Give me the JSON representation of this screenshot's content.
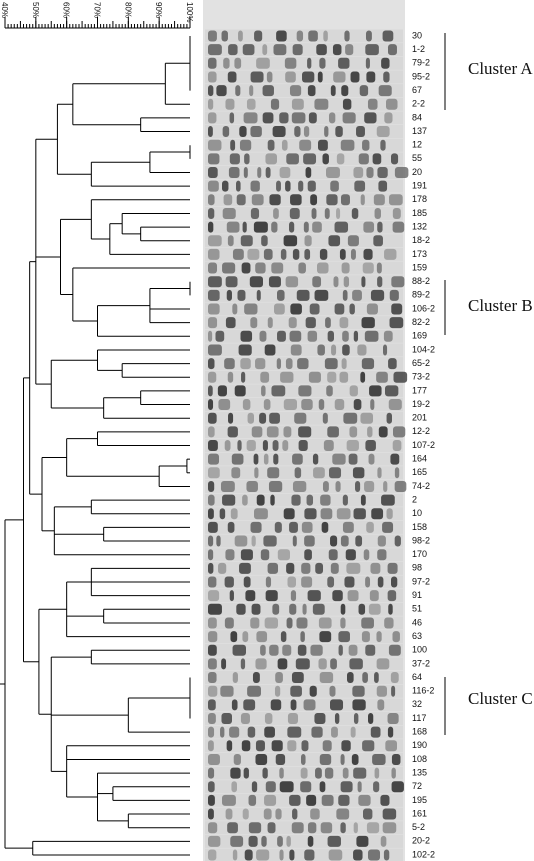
{
  "scale": {
    "range": [
      40,
      100
    ],
    "ticks": [
      {
        "value": 40,
        "label": "40%"
      },
      {
        "value": 50,
        "label": "50%"
      },
      {
        "value": 60,
        "label": "60%"
      },
      {
        "value": 70,
        "label": "70%"
      },
      {
        "value": 80,
        "label": "80%"
      },
      {
        "value": 90,
        "label": "90%"
      },
      {
        "value": 100,
        "label": "100%"
      }
    ]
  },
  "clusters": [
    {
      "label": "Cluster A"
    },
    {
      "label": "Cluster B"
    },
    {
      "label": "Cluster C"
    }
  ],
  "dendrogram": {
    "similarity": 40,
    "children": [
      {
        "similarity": 46,
        "children": [
          {
            "similarity": 48,
            "children": [
              {
                "similarity": 50,
                "children": [
                  {
                    "similarity": 57,
                    "children": [
                      {
                        "similarity": 62,
                        "children": [
                          {
                            "similarity": 92,
                            "children": [
                              {
                                "similarity": 100,
                                "children": [
                                  {
                                    "label": "30"
                                  },
                                  {
                                    "label": "1-2"
                                  },
                                  {
                                    "label": "79-2"
                                  },
                                  {
                                    "label": "95-2"
                                  },
                                  {
                                    "label": "67"
                                  }
                                ]
                              },
                              {
                                "label": "2-2"
                              }
                            ]
                          },
                          {
                            "similarity": 84,
                            "children": [
                              {
                                "label": "84"
                              },
                              {
                                "label": "137"
                              }
                            ]
                          }
                        ]
                      },
                      {
                        "similarity": 68,
                        "children": [
                          {
                            "similarity": 87,
                            "children": [
                              {
                                "similarity": 100,
                                "children": [
                                  {
                                    "label": "12"
                                  },
                                  {
                                    "label": "55"
                                  }
                                ]
                              },
                              {
                                "label": "20"
                              }
                            ]
                          },
                          {
                            "label": "191"
                          }
                        ]
                      }
                    ]
                  },
                  {
                    "similarity": 58,
                    "children": [
                      {
                        "similarity": 68,
                        "children": [
                          {
                            "label": "178"
                          },
                          {
                            "similarity": 74,
                            "children": [
                              {
                                "similarity": 78,
                                "children": [
                                  {
                                    "label": "185"
                                  },
                                  {
                                    "similarity": 84,
                                    "children": [
                                      {
                                        "label": "132"
                                      },
                                      {
                                        "label": "18-2"
                                      }
                                    ]
                                  }
                                ]
                              },
                              {
                                "label": "173"
                              }
                            ]
                          }
                        ]
                      },
                      {
                        "similarity": 62,
                        "children": [
                          {
                            "label": "159"
                          },
                          {
                            "similarity": 70,
                            "children": [
                              {
                                "similarity": 87,
                                "children": [
                                  {
                                    "similarity": 100,
                                    "children": [
                                      {
                                        "label": "88-2"
                                      },
                                      {
                                        "label": "89-2"
                                      }
                                    ]
                                  },
                                  {
                                    "label": "106-2"
                                  },
                                  {
                                    "label": "82-2"
                                  }
                                ]
                              },
                              {
                                "label": "169"
                              }
                            ]
                          }
                        ]
                      }
                    ]
                  },
                  {
                    "similarity": 55,
                    "children": [
                      {
                        "similarity": 70,
                        "children": [
                          {
                            "label": "104-2"
                          },
                          {
                            "similarity": 78,
                            "children": [
                              {
                                "label": "65-2"
                              },
                              {
                                "label": "73-2"
                              }
                            ]
                          }
                        ]
                      },
                      {
                        "similarity": 72,
                        "children": [
                          {
                            "similarity": 84,
                            "children": [
                              {
                                "label": "177"
                              },
                              {
                                "label": "19-2"
                              }
                            ]
                          },
                          {
                            "label": "201"
                          }
                        ]
                      }
                    ]
                  }
                ]
              },
              {
                "similarity": 52,
                "children": [
                  {
                    "similarity": 60,
                    "children": [
                      {
                        "similarity": 70,
                        "children": [
                          {
                            "label": "12-2"
                          },
                          {
                            "label": "107-2"
                          }
                        ]
                      },
                      {
                        "similarity": 90,
                        "children": [
                          {
                            "similarity": 99,
                            "children": [
                              {
                                "label": "164"
                              },
                              {
                                "label": "165"
                              }
                            ]
                          },
                          {
                            "label": "74-2"
                          }
                        ]
                      }
                    ]
                  },
                  {
                    "similarity": 56,
                    "children": [
                      {
                        "similarity": 68,
                        "children": [
                          {
                            "label": "2"
                          },
                          {
                            "label": "10"
                          }
                        ]
                      },
                      {
                        "similarity": 72,
                        "children": [
                          {
                            "label": "158"
                          },
                          {
                            "label": "98-2"
                          }
                        ]
                      },
                      {
                        "label": "170"
                      }
                    ]
                  }
                ]
              }
            ]
          },
          {
            "similarity": 51,
            "children": [
              {
                "similarity": 60,
                "children": [
                  {
                    "similarity": 68,
                    "children": [
                      {
                        "label": "98"
                      },
                      {
                        "label": "97-2"
                      },
                      {
                        "label": "91"
                      }
                    ]
                  },
                  {
                    "similarity": 72,
                    "children": [
                      {
                        "label": "51"
                      },
                      {
                        "label": "46"
                      }
                    ]
                  },
                  {
                    "label": "63"
                  }
                ]
              },
              {
                "similarity": 55,
                "children": [
                  {
                    "similarity": 68,
                    "children": [
                      {
                        "label": "100"
                      },
                      {
                        "label": "37-2"
                      }
                    ]
                  },
                  {
                    "similarity": 80,
                    "children": [
                      {
                        "similarity": 100,
                        "children": [
                          {
                            "label": "64"
                          },
                          {
                            "label": "116-2"
                          },
                          {
                            "label": "32"
                          },
                          {
                            "label": "117"
                          }
                        ]
                      },
                      {
                        "label": "168"
                      }
                    ]
                  },
                  {
                    "similarity": 60,
                    "children": [
                      {
                        "label": "190"
                      },
                      {
                        "label": "108"
                      },
                      {
                        "similarity": 70,
                        "children": [
                          {
                            "label": "135"
                          },
                          {
                            "similarity": 75,
                            "children": [
                              {
                                "label": "72"
                              },
                              {
                                "label": "195"
                              }
                            ]
                          },
                          {
                            "similarity": 80,
                            "children": [
                              {
                                "label": "161"
                              },
                              {
                                "label": "5-2"
                              }
                            ]
                          }
                        ]
                      }
                    ]
                  }
                ]
              }
            ]
          }
        ]
      },
      {
        "similarity": 49,
        "children": [
          {
            "label": "20-2"
          },
          {
            "label": "102-2"
          }
        ]
      }
    ]
  }
}
